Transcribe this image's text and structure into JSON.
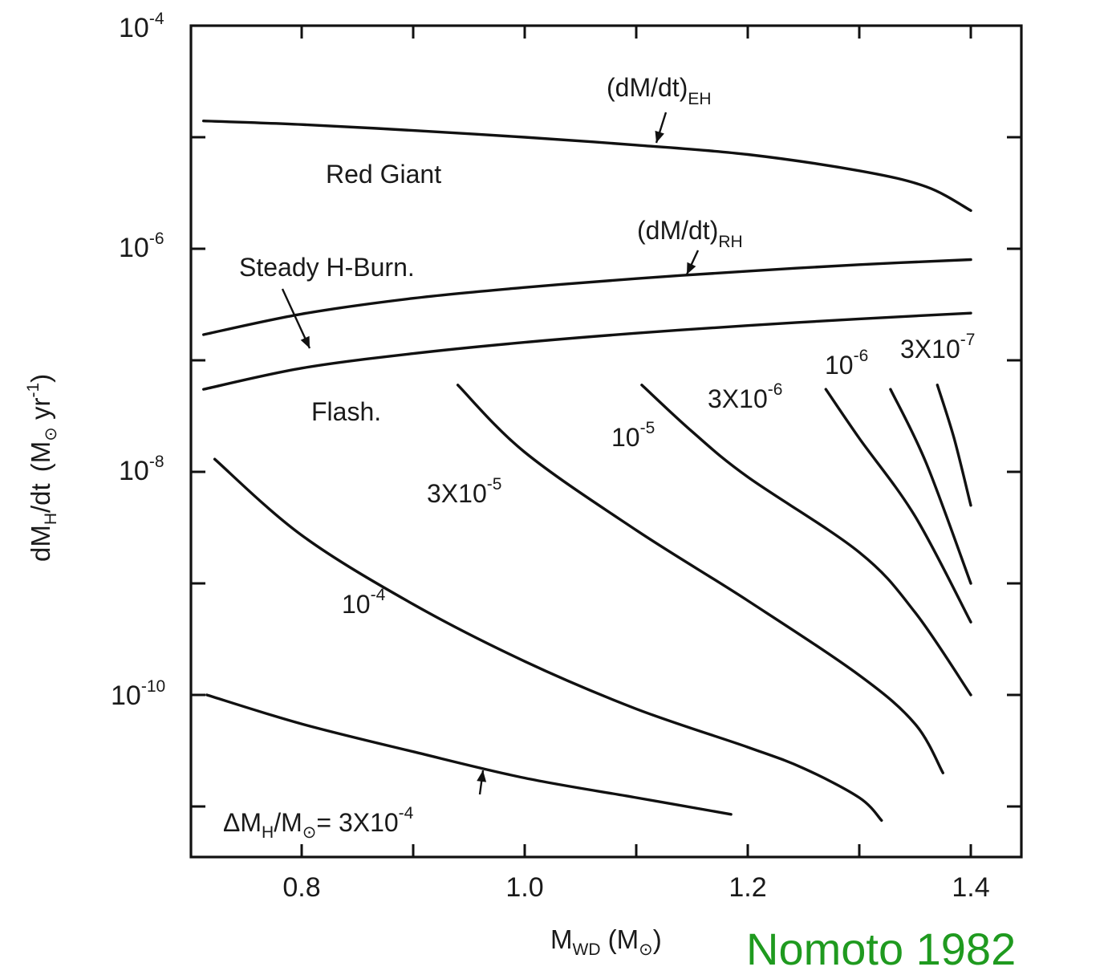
{
  "chart_data": {
    "type": "line",
    "x_axis": {
      "label_main": "M",
      "label_sub": "WD",
      "label_unit_open": " (M",
      "label_unit_close": ")",
      "range": [
        0.7,
        1.45
      ],
      "ticks": [
        {
          "value": 0.8,
          "label": "0.8"
        },
        {
          "value": 1.0,
          "label": "1.0"
        },
        {
          "value": 1.2,
          "label": "1.2"
        },
        {
          "value": 1.4,
          "label": "1.4"
        }
      ],
      "minor_ticks": [
        0.9,
        1.1,
        1.3
      ]
    },
    "y_axis": {
      "label_main": "dM",
      "label_sub": "H",
      "label_mid": "/dt",
      "label_unit_open": "(M",
      "label_unit_yr": " yr",
      "label_unit_exp": "-1",
      "label_unit_close": ")",
      "scale": "log",
      "range": [
        1e-11,
        0.0001
      ],
      "ticks": [
        {
          "value": 0.0001,
          "base": "10",
          "exp": "-4"
        },
        {
          "value": 1e-06,
          "base": "10",
          "exp": "-6"
        },
        {
          "value": 1e-08,
          "base": "10",
          "exp": "-8"
        },
        {
          "value": 1e-10,
          "base": "10",
          "exp": "-10"
        }
      ]
    },
    "series": [
      {
        "name": "(dM/dt)EH",
        "x": [
          0.712,
          0.8,
          0.9,
          1.0,
          1.1,
          1.2,
          1.3,
          1.36,
          1.4
        ],
        "y": [
          1.4e-05,
          1.3e-05,
          1.15e-05,
          1e-05,
          8.5e-06,
          7e-06,
          5e-06,
          3.6e-06,
          2.2e-06
        ]
      },
      {
        "name": "(dM/dt)RH",
        "x": [
          0.712,
          0.8,
          0.9,
          1.0,
          1.1,
          1.2,
          1.3,
          1.4
        ],
        "y": [
          1.7e-07,
          2.6e-07,
          3.6e-07,
          4.5e-07,
          5.4e-07,
          6.3e-07,
          7.2e-07,
          8e-07
        ]
      },
      {
        "name": "Steady H-Burn. lower",
        "x": [
          0.712,
          0.8,
          0.9,
          1.0,
          1.1,
          1.2,
          1.3,
          1.4
        ],
        "y": [
          5.5e-08,
          8.5e-08,
          1.15e-07,
          1.45e-07,
          1.75e-07,
          2.05e-07,
          2.35e-07,
          2.65e-07
        ]
      },
      {
        "name": "3X10-4",
        "x": [
          0.715,
          0.8,
          0.9,
          1.0,
          1.1,
          1.185
        ],
        "y": [
          1e-10,
          5.5e-11,
          3.1e-11,
          1.8e-11,
          1.2e-11,
          8.5e-12
        ]
      },
      {
        "name": "10-4",
        "x": [
          0.722,
          0.8,
          0.9,
          1.0,
          1.1,
          1.2,
          1.25,
          1.3,
          1.32
        ],
        "y": [
          1.3e-08,
          2.7e-09,
          6.5e-10,
          2e-10,
          7.5e-11,
          3.4e-11,
          2.2e-11,
          1.2e-11,
          7.5e-12
        ]
      },
      {
        "name": "3X10-5",
        "x": [
          0.94,
          1.0,
          1.1,
          1.2,
          1.3,
          1.35,
          1.375
        ],
        "y": [
          6e-08,
          1.5e-08,
          3e-09,
          7e-10,
          1.5e-10,
          5.5e-11,
          2e-11
        ]
      },
      {
        "name": "10-5",
        "x": [
          1.105,
          1.15,
          1.2,
          1.3,
          1.35,
          1.4
        ],
        "y": [
          6e-08,
          2.3e-08,
          9e-09,
          1.9e-09,
          5.5e-10,
          1e-10
        ]
      },
      {
        "name": "3X10-6",
        "x": [
          1.27,
          1.3,
          1.35,
          1.4
        ],
        "y": [
          5.5e-08,
          2e-08,
          4e-09,
          4.5e-10
        ]
      },
      {
        "name": "10-6",
        "x": [
          1.328,
          1.36,
          1.4
        ],
        "y": [
          5.5e-08,
          1.2e-08,
          1e-09
        ]
      },
      {
        "name": "3X10-7",
        "x": [
          1.37,
          1.385,
          1.4
        ],
        "y": [
          6e-08,
          2e-08,
          5e-09
        ]
      }
    ],
    "labels": {
      "eh": {
        "main": "(dM/dt)",
        "sub": "EH"
      },
      "rh": {
        "main": "(dM/dt)",
        "sub": "RH"
      },
      "red_giant": "Red Giant",
      "steady": "Steady H-Burn.",
      "flash": "Flash.",
      "delta": {
        "main": "ΔM",
        "sub": "H",
        "mid": "/M",
        "eq": "= 3X10",
        "exp": "-4"
      },
      "c_1e4": {
        "base": "10",
        "exp": "-4"
      },
      "c_3e5": {
        "base": "3X10",
        "exp": "-5"
      },
      "c_1e5": {
        "base": "10",
        "exp": "-5"
      },
      "c_3e6": {
        "base": "3X10",
        "exp": "-6"
      },
      "c_1e6": {
        "base": "10",
        "exp": "-6"
      },
      "c_3e7": {
        "base": "3X10",
        "exp": "-7"
      }
    },
    "grid": false,
    "legend": "none"
  },
  "credit": "Nomoto 1982"
}
